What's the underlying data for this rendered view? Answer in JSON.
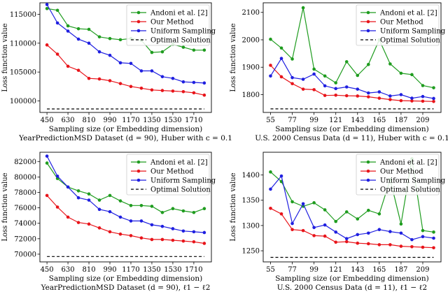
{
  "chart_data": [
    {
      "type": "line",
      "ylabel": "Loss function value",
      "xlabel": "Sampling size (or Embedding dimension)",
      "caption": "YearPredictionMSD Dataset (d = 90), Huber with c = 0.1",
      "x": [
        450,
        540,
        630,
        720,
        810,
        900,
        990,
        1080,
        1170,
        1260,
        1350,
        1440,
        1530,
        1620,
        1710,
        1800
      ],
      "xticks": [
        450,
        630,
        810,
        990,
        1170,
        1350,
        1530,
        1710
      ],
      "ylim": [
        98000,
        117000
      ],
      "yticks": [
        100000,
        105000,
        110000,
        115000
      ],
      "legend": "top-right",
      "series": [
        {
          "name": "Andoni et al. [2]",
          "color": "#1f9c1f",
          "values": [
            116000,
            115700,
            113000,
            112500,
            112400,
            111100,
            110800,
            110600,
            110800,
            110500,
            108400,
            108500,
            109800,
            109300,
            108800,
            108800
          ]
        },
        {
          "name": "Our Method",
          "color": "#e8141a",
          "values": [
            109700,
            108100,
            106000,
            105300,
            103900,
            103800,
            103500,
            103000,
            102500,
            102200,
            101900,
            101800,
            101700,
            101600,
            101400,
            101000
          ]
        },
        {
          "name": "Uniform Sampling",
          "color": "#1f1fe0",
          "values": [
            116700,
            113500,
            112100,
            110700,
            110000,
            108500,
            107900,
            106600,
            106500,
            105200,
            105200,
            104200,
            103900,
            103300,
            103200,
            103100
          ]
        },
        {
          "name": "Optimal Solution",
          "color": "#000000",
          "dashed": true,
          "values": [
            98600,
            98600,
            98600,
            98600,
            98600,
            98600,
            98600,
            98600,
            98600,
            98600,
            98600,
            98600,
            98600,
            98600,
            98600,
            98600
          ]
        }
      ]
    },
    {
      "type": "line",
      "ylabel": "Loss function value",
      "xlabel": "Sampling size (or Embedding dimension)",
      "caption": "U.S. 2000 Census Data (d = 11), Huber with c = 0.1",
      "x": [
        55,
        66,
        77,
        88,
        99,
        110,
        121,
        132,
        143,
        154,
        165,
        176,
        187,
        198,
        209,
        220
      ],
      "xticks": [
        55,
        77,
        99,
        121,
        143,
        165,
        187,
        209
      ],
      "ylim": [
        1735,
        2135
      ],
      "yticks": [
        1800,
        1900,
        2000,
        2100
      ],
      "legend": "top-right",
      "series": [
        {
          "name": "Andoni et al. [2]",
          "color": "#1f9c1f",
          "values": [
            2002,
            1970,
            1930,
            2117,
            1893,
            1868,
            1843,
            1920,
            1870,
            1910,
            2000,
            1912,
            1878,
            1873,
            1833,
            1825
          ]
        },
        {
          "name": "Our Method",
          "color": "#e8141a",
          "values": [
            1907,
            1865,
            1840,
            1820,
            1818,
            1797,
            1798,
            1796,
            1795,
            1792,
            1787,
            1782,
            1778,
            1777,
            1776,
            1775
          ]
        },
        {
          "name": "Uniform Sampling",
          "color": "#1f1fe0",
          "values": [
            1868,
            1932,
            1862,
            1856,
            1875,
            1832,
            1822,
            1828,
            1820,
            1806,
            1810,
            1795,
            1800,
            1787,
            1793,
            1786
          ]
        },
        {
          "name": "Optimal Solution",
          "color": "#000000",
          "dashed": true,
          "values": [
            1748,
            1748,
            1748,
            1748,
            1748,
            1748,
            1748,
            1748,
            1748,
            1748,
            1748,
            1748,
            1748,
            1748,
            1748,
            1748
          ]
        }
      ]
    },
    {
      "type": "line",
      "ylabel": "Loss function value",
      "xlabel": "Sampling size (or Embedding dimension)",
      "caption": "YearPredictionMSD Dataset (d = 90), ℓ1 − ℓ2",
      "x": [
        450,
        540,
        630,
        720,
        810,
        900,
        990,
        1080,
        1170,
        1260,
        1350,
        1440,
        1530,
        1620,
        1710,
        1800
      ],
      "xticks": [
        450,
        630,
        810,
        990,
        1170,
        1350,
        1530,
        1710
      ],
      "ylim": [
        69000,
        83200
      ],
      "yticks": [
        70000,
        72000,
        74000,
        76000,
        78000,
        80000,
        82000
      ],
      "legend": "top-right",
      "series": [
        {
          "name": "Andoni et al. [2]",
          "color": "#1f9c1f",
          "values": [
            81800,
            79800,
            78700,
            78200,
            77800,
            77000,
            77600,
            76900,
            76300,
            76300,
            76200,
            75400,
            75900,
            75600,
            75400,
            75900
          ]
        },
        {
          "name": "Our Method",
          "color": "#e8141a",
          "values": [
            77600,
            76100,
            74800,
            74100,
            73900,
            73400,
            72900,
            72600,
            72400,
            72100,
            71900,
            71900,
            71800,
            71700,
            71600,
            71400
          ]
        },
        {
          "name": "Uniform Sampling",
          "color": "#1f1fe0",
          "values": [
            82700,
            80100,
            78700,
            77300,
            77000,
            75800,
            75500,
            74800,
            74300,
            74300,
            73800,
            73600,
            73300,
            73000,
            72900,
            72800
          ]
        },
        {
          "name": "Optimal Solution",
          "color": "#000000",
          "dashed": true,
          "values": [
            69700,
            69700,
            69700,
            69700,
            69700,
            69700,
            69700,
            69700,
            69700,
            69700,
            69700,
            69700,
            69700,
            69700,
            69700,
            69700
          ]
        }
      ]
    },
    {
      "type": "line",
      "ylabel": "Loss function value",
      "xlabel": "Sampling size (or Embedding dimension)",
      "caption": "U.S. 2000 Census Data (d = 11), ℓ1 − ℓ2",
      "x": [
        55,
        66,
        77,
        88,
        99,
        110,
        121,
        132,
        143,
        154,
        165,
        176,
        187,
        198,
        209,
        220
      ],
      "xticks": [
        55,
        77,
        99,
        121,
        143,
        165,
        187,
        209
      ],
      "ylim": [
        1228,
        1445
      ],
      "yticks": [
        1250,
        1300,
        1350,
        1400
      ],
      "legend": "top-right",
      "series": [
        {
          "name": "Andoni et al. [2]",
          "color": "#1f9c1f",
          "values": [
            1406,
            1387,
            1347,
            1338,
            1345,
            1331,
            1308,
            1327,
            1313,
            1330,
            1323,
            1391,
            1303,
            1432,
            1290,
            1287
          ]
        },
        {
          "name": "Our Method",
          "color": "#e8141a",
          "values": [
            1334,
            1323,
            1292,
            1290,
            1280,
            1279,
            1267,
            1268,
            1265,
            1264,
            1262,
            1262,
            1259,
            1258,
            1257,
            1256
          ]
        },
        {
          "name": "Uniform Sampling",
          "color": "#1f1fe0",
          "values": [
            1372,
            1398,
            1304,
            1343,
            1296,
            1301,
            1287,
            1274,
            1282,
            1285,
            1292,
            1288,
            1285,
            1272,
            1278,
            1275
          ]
        },
        {
          "name": "Optimal Solution",
          "color": "#000000",
          "dashed": true,
          "values": [
            1237,
            1237,
            1237,
            1237,
            1237,
            1237,
            1237,
            1237,
            1237,
            1237,
            1237,
            1237,
            1237,
            1237,
            1237,
            1237
          ]
        }
      ]
    }
  ]
}
